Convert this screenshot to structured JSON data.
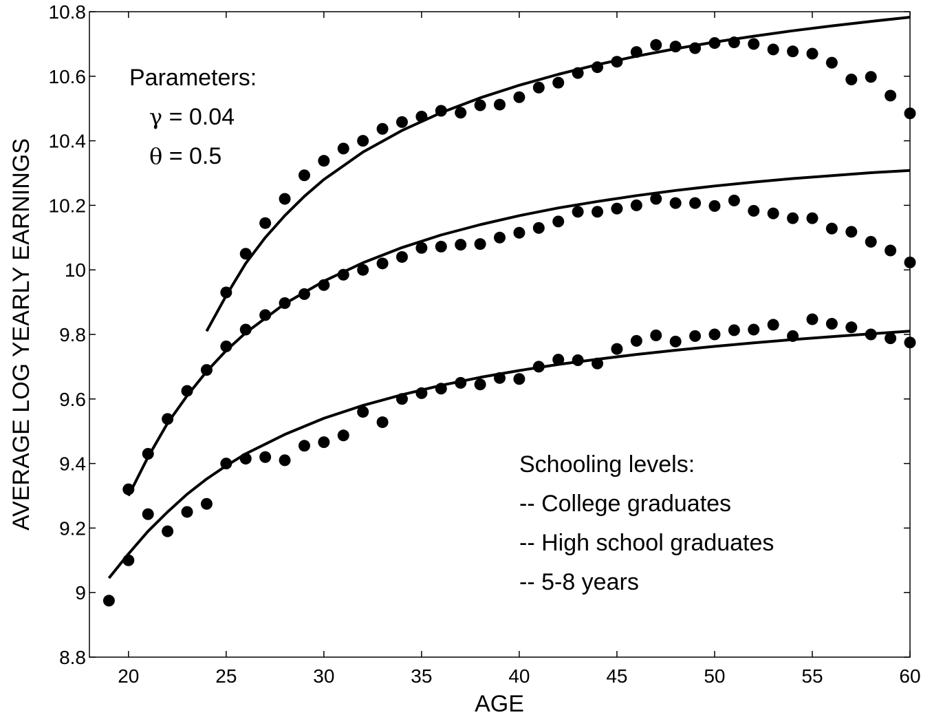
{
  "chart_data": {
    "type": "scatter",
    "xlabel": "AGE",
    "ylabel": "AVERAGE LOG YEARLY EARNINGS",
    "xlim": [
      18,
      60
    ],
    "ylim": [
      8.8,
      10.8
    ],
    "x_ticks": [
      20,
      25,
      30,
      35,
      40,
      45,
      50,
      55,
      60
    ],
    "y_ticks": [
      8.8,
      9,
      9.2,
      9.4,
      9.6,
      9.8,
      10,
      10.2,
      10.4,
      10.6,
      10.8
    ],
    "x_tick_labels": [
      "20",
      "25",
      "30",
      "35",
      "40",
      "45",
      "50",
      "55",
      "60"
    ],
    "y_tick_labels": [
      "8.8",
      "9",
      "9.2",
      "9.4",
      "9.6",
      "9.8",
      "10",
      "10.2",
      "10.4",
      "10.6",
      "10.8"
    ],
    "grid": false,
    "parameters_box": {
      "heading": "Parameters:",
      "line1_symbol": "γ",
      "line1_rest": " = 0.04",
      "line2_symbol": "θ",
      "line2_rest": " = 0.5"
    },
    "schooling_box": {
      "heading": "Schooling levels:",
      "items": [
        "-- College graduates",
        "-- High school graduates",
        "-- 5-8 years"
      ]
    },
    "series": [
      {
        "key": "college",
        "points": {
          "x": [
            25,
            26,
            27,
            28,
            29,
            30,
            31,
            32,
            33,
            34,
            35,
            36,
            37,
            38,
            39,
            40,
            41,
            42,
            43,
            44,
            45,
            46,
            47,
            48,
            49,
            50,
            51,
            52,
            53,
            54,
            55,
            56,
            57,
            58,
            59,
            60
          ],
          "y": [
            9.93,
            10.05,
            10.145,
            10.22,
            10.293,
            10.338,
            10.376,
            10.4,
            10.437,
            10.458,
            10.475,
            10.493,
            10.487,
            10.51,
            10.512,
            10.535,
            10.565,
            10.58,
            10.61,
            10.628,
            10.645,
            10.675,
            10.697,
            10.692,
            10.687,
            10.703,
            10.705,
            10.7,
            10.683,
            10.677,
            10.67,
            10.642,
            10.59,
            10.598,
            10.54,
            10.485
          ]
        },
        "fit": {
          "x": [
            24,
            25,
            26,
            27,
            28,
            29,
            30,
            32,
            34,
            36,
            38,
            40,
            42,
            44,
            46,
            48,
            50,
            52,
            54,
            56,
            58,
            60
          ],
          "y": [
            9.81,
            9.92,
            10.02,
            10.1,
            10.168,
            10.228,
            10.28,
            10.365,
            10.432,
            10.487,
            10.533,
            10.572,
            10.606,
            10.636,
            10.662,
            10.685,
            10.706,
            10.724,
            10.741,
            10.756,
            10.77,
            10.783
          ]
        }
      },
      {
        "key": "high_school",
        "points": {
          "x": [
            20,
            21,
            22,
            23,
            24,
            25,
            26,
            27,
            28,
            29,
            30,
            31,
            32,
            33,
            34,
            35,
            36,
            37,
            38,
            39,
            40,
            41,
            42,
            43,
            44,
            45,
            46,
            47,
            48,
            49,
            50,
            51,
            52,
            53,
            54,
            55,
            56,
            57,
            58,
            59,
            60
          ],
          "y": [
            9.32,
            9.43,
            9.538,
            9.625,
            9.69,
            9.763,
            9.815,
            9.86,
            9.897,
            9.925,
            9.953,
            9.985,
            10.0,
            10.02,
            10.04,
            10.068,
            10.072,
            10.078,
            10.08,
            10.1,
            10.115,
            10.13,
            10.15,
            10.18,
            10.18,
            10.19,
            10.2,
            10.22,
            10.207,
            10.207,
            10.198,
            10.215,
            10.183,
            10.175,
            10.16,
            10.16,
            10.128,
            10.118,
            10.087,
            10.06,
            10.023
          ]
        },
        "fit": {
          "x": [
            20,
            21,
            22,
            23,
            24,
            25,
            26,
            28,
            30,
            32,
            34,
            36,
            38,
            40,
            42,
            44,
            46,
            48,
            50,
            52,
            54,
            56,
            58,
            60
          ],
          "y": [
            9.3,
            9.42,
            9.525,
            9.61,
            9.685,
            9.75,
            9.805,
            9.895,
            9.965,
            10.022,
            10.069,
            10.108,
            10.14,
            10.168,
            10.192,
            10.212,
            10.23,
            10.246,
            10.26,
            10.272,
            10.283,
            10.292,
            10.301,
            10.308
          ]
        }
      },
      {
        "key": "five_to_eight",
        "points": {
          "x": [
            19,
            20,
            21,
            22,
            23,
            24,
            25,
            26,
            27,
            28,
            29,
            30,
            31,
            32,
            33,
            34,
            35,
            36,
            37,
            38,
            39,
            40,
            41,
            42,
            43,
            44,
            45,
            46,
            47,
            48,
            49,
            50,
            51,
            52,
            53,
            54,
            55,
            56,
            57,
            58,
            59,
            60
          ],
          "y": [
            8.975,
            9.1,
            9.243,
            9.19,
            9.25,
            9.275,
            9.4,
            9.415,
            9.42,
            9.41,
            9.455,
            9.466,
            9.487,
            9.56,
            9.528,
            9.6,
            9.618,
            9.632,
            9.65,
            9.645,
            9.665,
            9.662,
            9.7,
            9.722,
            9.72,
            9.71,
            9.755,
            9.78,
            9.797,
            9.778,
            9.795,
            9.8,
            9.813,
            9.815,
            9.83,
            9.795,
            9.847,
            9.833,
            9.822,
            9.8,
            9.788,
            9.775
          ]
        },
        "fit": {
          "x": [
            19,
            20,
            21,
            22,
            23,
            24,
            25,
            26,
            28,
            30,
            32,
            34,
            36,
            38,
            40,
            42,
            44,
            46,
            48,
            50,
            52,
            54,
            56,
            58,
            60
          ],
          "y": [
            9.045,
            9.12,
            9.19,
            9.25,
            9.305,
            9.352,
            9.393,
            9.43,
            9.49,
            9.54,
            9.58,
            9.613,
            9.642,
            9.667,
            9.688,
            9.707,
            9.723,
            9.738,
            9.751,
            9.763,
            9.774,
            9.784,
            9.793,
            9.802,
            9.81
          ]
        }
      }
    ]
  }
}
